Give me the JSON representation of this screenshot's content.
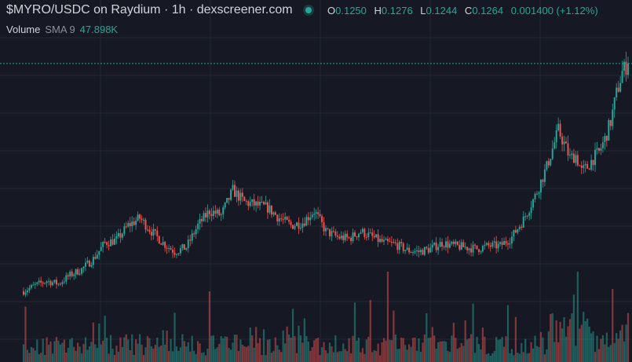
{
  "header": {
    "pair_title": "$MYRO/USDC on Raydium · 1h · dexscreener.com"
  },
  "ohlc": {
    "o_label": "O",
    "o_value": "0.1250",
    "h_label": "H",
    "h_value": "0.1276",
    "l_label": "L",
    "l_value": "0.1244",
    "c_label": "C",
    "c_value": "0.1264",
    "change": "0.001400 (+1.12%)"
  },
  "volume_legend": {
    "label": "Volume",
    "sma_label": "SMA 9",
    "value": "47.898K"
  },
  "colors": {
    "background": "#161823",
    "up": "#26a69a",
    "down": "#ef5350",
    "grid": "#232634",
    "text": "#d1d4dc"
  },
  "chart_data": {
    "type": "candlestick",
    "interval": "1h",
    "grid": true,
    "last_close": 0.1264,
    "ylim": [
      0.042,
      0.132
    ],
    "price_path": [
      [
        0,
        0.0485
      ],
      [
        6,
        0.0505
      ],
      [
        12,
        0.052
      ],
      [
        18,
        0.051
      ],
      [
        24,
        0.054
      ],
      [
        30,
        0.056
      ],
      [
        36,
        0.0595
      ],
      [
        42,
        0.065
      ],
      [
        48,
        0.066
      ],
      [
        54,
        0.071
      ],
      [
        60,
        0.0735
      ],
      [
        66,
        0.069
      ],
      [
        72,
        0.065
      ],
      [
        78,
        0.062
      ],
      [
        84,
        0.0635
      ],
      [
        90,
        0.071
      ],
      [
        96,
        0.076
      ],
      [
        102,
        0.0745
      ],
      [
        108,
        0.083
      ],
      [
        114,
        0.079
      ],
      [
        120,
        0.078
      ],
      [
        126,
        0.077
      ],
      [
        132,
        0.0735
      ],
      [
        138,
        0.071
      ],
      [
        144,
        0.072
      ],
      [
        150,
        0.076
      ],
      [
        156,
        0.069
      ],
      [
        162,
        0.067
      ],
      [
        168,
        0.0665
      ],
      [
        174,
        0.069
      ],
      [
        180,
        0.067
      ],
      [
        186,
        0.065
      ],
      [
        192,
        0.0645
      ],
      [
        198,
        0.0625
      ],
      [
        204,
        0.062
      ],
      [
        210,
        0.063
      ],
      [
        216,
        0.065
      ],
      [
        222,
        0.064
      ],
      [
        228,
        0.0635
      ],
      [
        234,
        0.063
      ],
      [
        240,
        0.064
      ],
      [
        246,
        0.064
      ],
      [
        252,
        0.067
      ],
      [
        258,
        0.073
      ],
      [
        264,
        0.081
      ],
      [
        270,
        0.091
      ],
      [
        276,
        0.1035
      ],
      [
        279,
        0.099
      ],
      [
        282,
        0.094
      ],
      [
        285,
        0.095
      ],
      [
        288,
        0.0895
      ],
      [
        291,
        0.091
      ],
      [
        294,
        0.094
      ],
      [
        297,
        0.096
      ],
      [
        300,
        0.1005
      ],
      [
        303,
        0.1065
      ],
      [
        306,
        0.116
      ],
      [
        309,
        0.1235
      ],
      [
        312,
        0.1264
      ]
    ],
    "volume_sma9": 47898
  }
}
